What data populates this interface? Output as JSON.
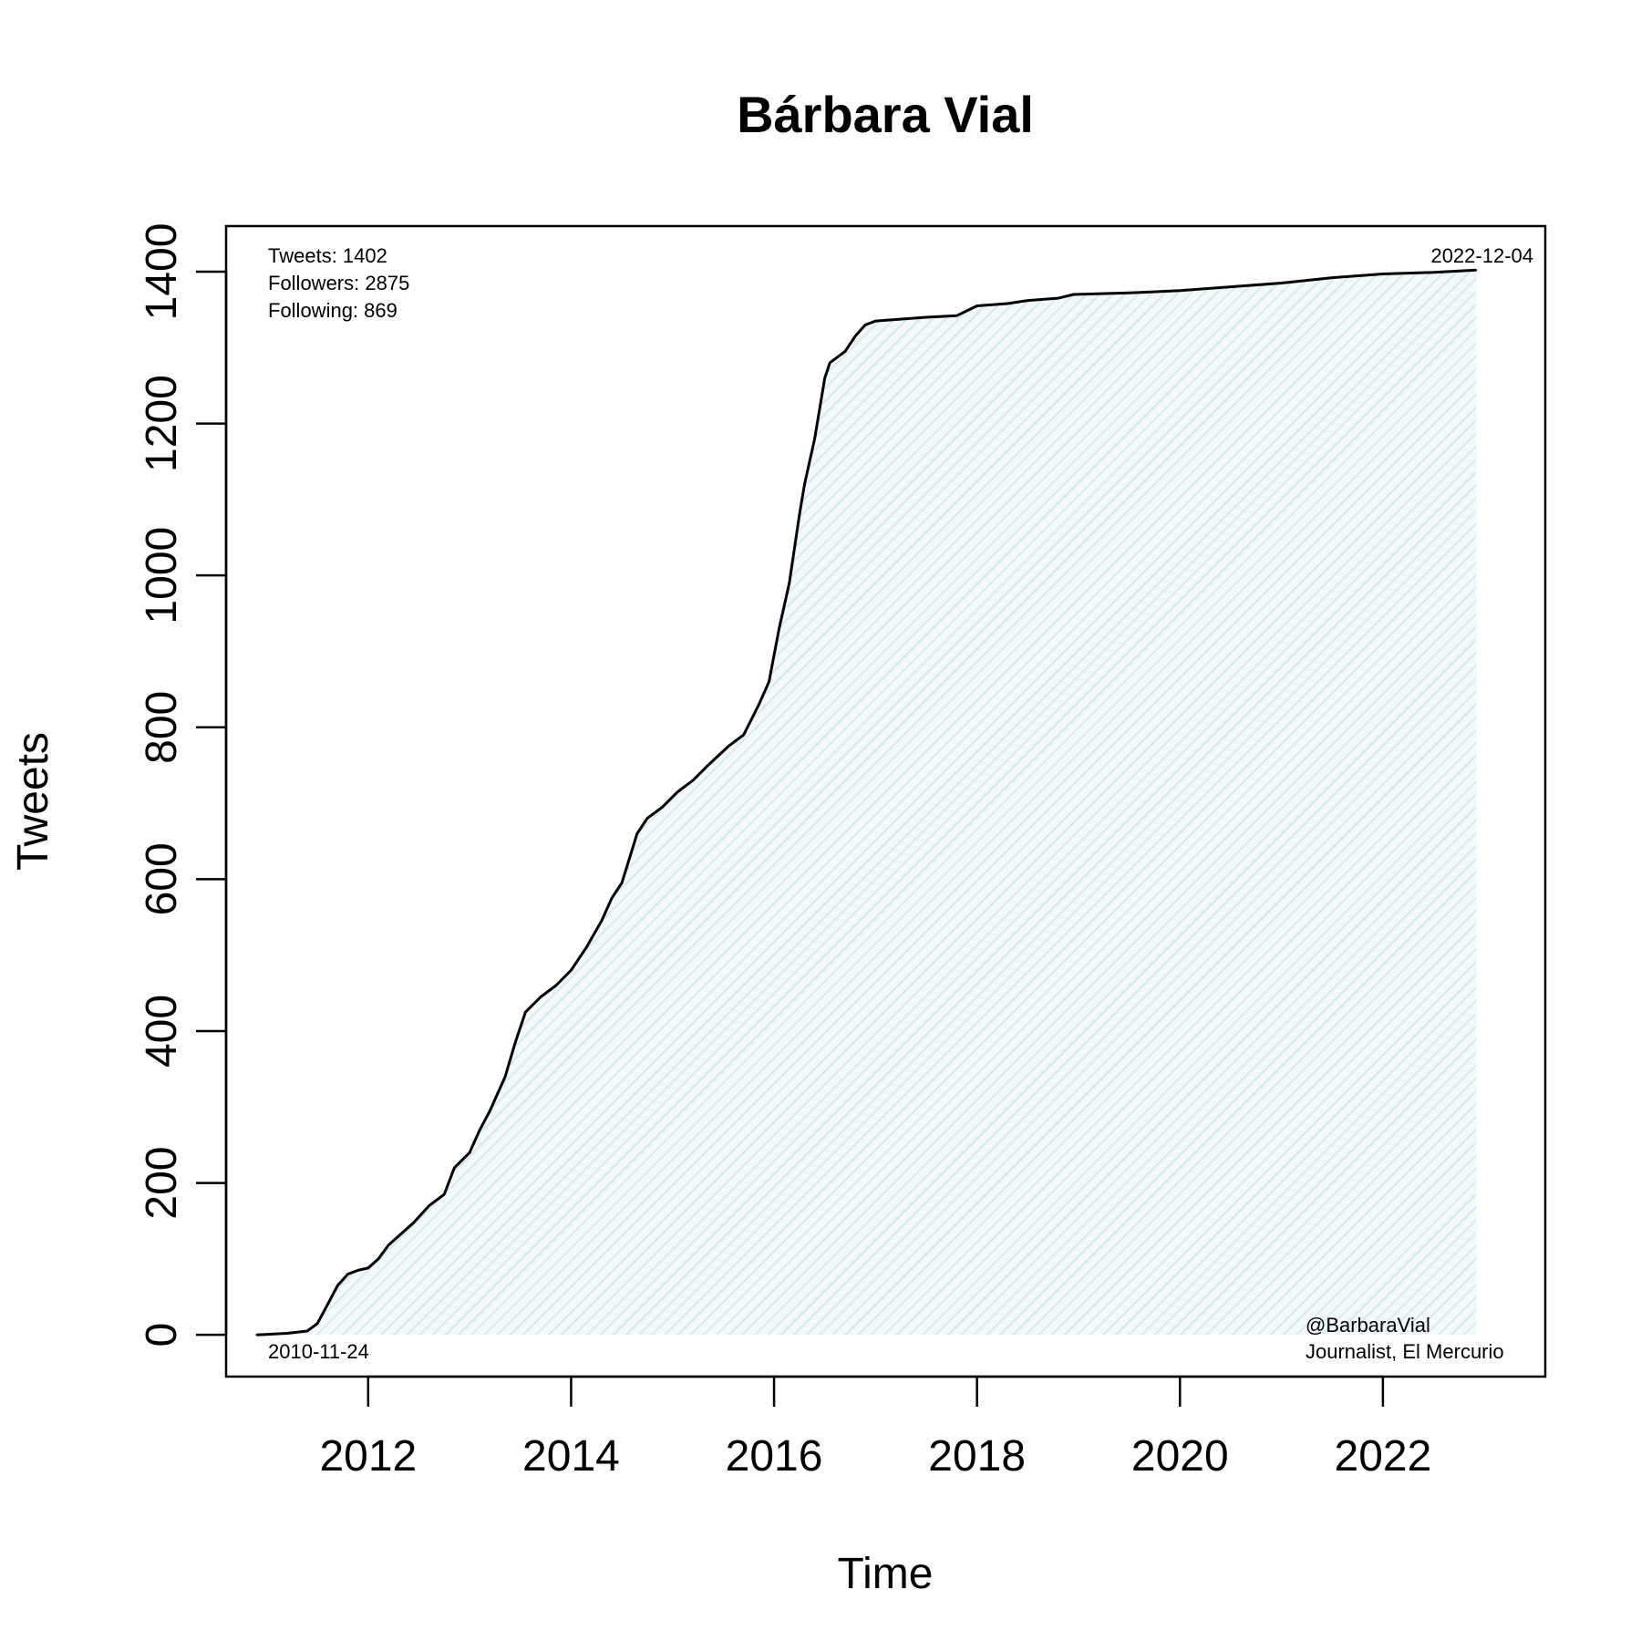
{
  "chart_data": {
    "type": "area",
    "title": "Bárbara Vial",
    "xlabel": "Time",
    "ylabel": "Tweets",
    "xlim": [
      2010.6,
      2023.6
    ],
    "ylim": [
      -55,
      1460
    ],
    "x_ticks": [
      2012,
      2014,
      2016,
      2018,
      2020,
      2022
    ],
    "y_ticks": [
      0,
      200,
      400,
      600,
      800,
      1000,
      1200,
      1400
    ],
    "grid": false,
    "fill_color": "#e6f2f5",
    "line_color": "#000000",
    "x_unit": "year",
    "series": [
      {
        "x": [
          2010.9,
          2011.2,
          2011.4,
          2011.5,
          2011.6,
          2011.7,
          2011.8,
          2011.9,
          2012.0,
          2012.1,
          2012.2,
          2012.3,
          2012.45,
          2012.6,
          2012.75,
          2012.85,
          2013.0,
          2013.1,
          2013.2,
          2013.35,
          2013.45,
          2013.55,
          2013.7,
          2013.85,
          2014.0,
          2014.15,
          2014.3,
          2014.4,
          2014.5,
          2014.65,
          2014.75,
          2014.9,
          2015.05,
          2015.2,
          2015.35,
          2015.55,
          2015.7,
          2015.85,
          2015.95,
          2016.05,
          2016.15,
          2016.25,
          2016.3,
          2016.4,
          2016.5,
          2016.55,
          2016.6,
          2016.7,
          2016.8,
          2016.9,
          2017.0,
          2017.5,
          2017.8,
          2018.0,
          2018.3,
          2018.5,
          2018.8,
          2018.95,
          2019.5,
          2020.0,
          2020.5,
          2021.0,
          2021.5,
          2022.0,
          2022.5,
          2022.92
        ],
        "y": [
          0,
          2,
          5,
          15,
          40,
          65,
          80,
          85,
          88,
          100,
          118,
          130,
          148,
          170,
          185,
          220,
          240,
          270,
          295,
          340,
          385,
          425,
          445,
          460,
          480,
          510,
          545,
          575,
          595,
          660,
          680,
          695,
          715,
          730,
          750,
          775,
          790,
          830,
          860,
          930,
          990,
          1080,
          1120,
          1180,
          1260,
          1280,
          1285,
          1295,
          1315,
          1330,
          1335,
          1340,
          1342,
          1355,
          1358,
          1362,
          1365,
          1370,
          1372,
          1375,
          1380,
          1385,
          1392,
          1397,
          1399,
          1402
        ]
      }
    ]
  },
  "annotations": {
    "tweets": "Tweets: 1402",
    "followers": "Followers: 2875",
    "following": "Following: 869",
    "end_date": "2022-12-04",
    "start_date": "2010-11-24",
    "handle": "@BarbaraVial",
    "bio": "Journalist, El Mercurio"
  }
}
